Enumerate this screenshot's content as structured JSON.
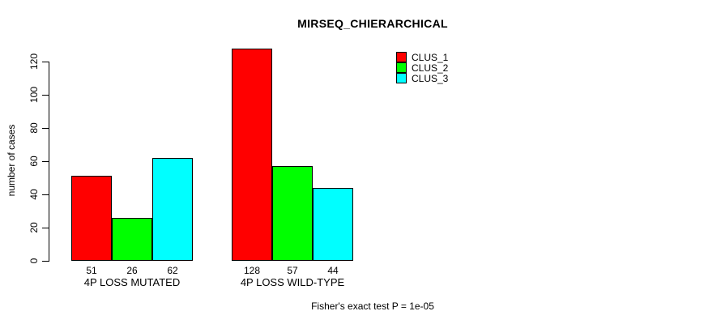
{
  "chart_data": {
    "type": "bar",
    "title": "MIRSEQ_CHIERARCHICAL",
    "ylabel": "number of cases",
    "xlabel": "",
    "categories": [
      "4P LOSS MUTATED",
      "4P LOSS WILD-TYPE"
    ],
    "series": [
      {
        "name": "CLUS_1",
        "color": "#ff0000",
        "values": [
          51,
          128
        ]
      },
      {
        "name": "CLUS_2",
        "color": "#00ff00",
        "values": [
          26,
          57
        ]
      },
      {
        "name": "CLUS_3",
        "color": "#00ffff",
        "values": [
          62,
          44
        ]
      }
    ],
    "bar_value_labels": [
      [
        "51",
        "26",
        "62"
      ],
      [
        "128",
        "57",
        "44"
      ]
    ],
    "yticks": [
      0,
      20,
      40,
      60,
      80,
      100,
      120
    ],
    "ylim": [
      0,
      128
    ],
    "grid": false,
    "legend_position": "top-right-inside",
    "footnote": "Fisher's exact test P = 1e-05",
    "background_color": "#ffffff",
    "axis_color": "#000000"
  }
}
